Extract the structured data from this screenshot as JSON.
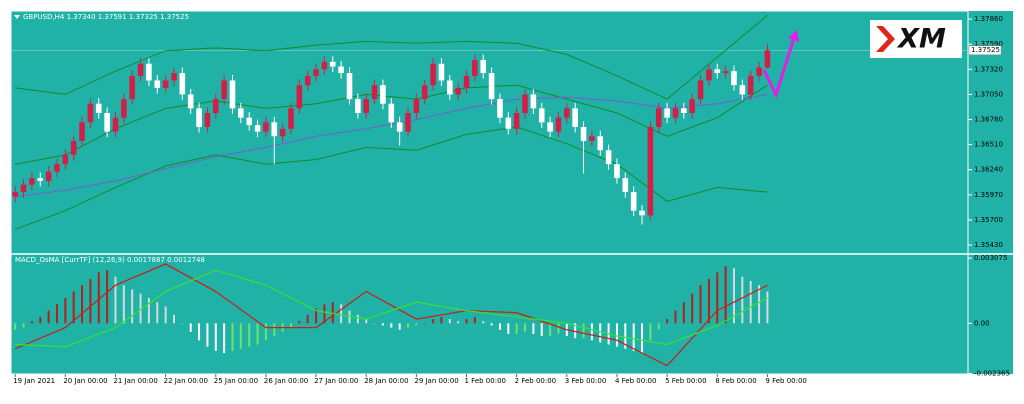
{
  "logo": "XM",
  "chart_data": [
    {
      "type": "candlestick",
      "title": "GBPUSD,H4  1.37340 1.37591 1.37325 1.37525",
      "xlim": [
        -0.5,
        114
      ],
      "ylim": [
        1.35334,
        1.37947
      ],
      "yticks": [
        {
          "value": 1.3786,
          "label": "1.37860"
        },
        {
          "value": 1.3759,
          "label": "1.37590"
        },
        {
          "value": 1.3732,
          "label": "1.37320"
        },
        {
          "value": 1.3705,
          "label": "1.37050"
        },
        {
          "value": 1.3678,
          "label": "1.36780"
        },
        {
          "value": 1.3651,
          "label": "1.36510"
        },
        {
          "value": 1.3624,
          "label": "1.36240"
        },
        {
          "value": 1.3597,
          "label": "1.35970"
        },
        {
          "value": 1.357,
          "label": "1.35700"
        },
        {
          "value": 1.3543,
          "label": "1.35430"
        }
      ],
      "last_price": {
        "value": 1.37525,
        "label": "1.37525"
      },
      "bull_color": "#d21f48",
      "bear_color": "#ffffff",
      "wick_color": "#ffffff",
      "open": [
        1.3595,
        1.36,
        1.3608,
        1.3615,
        1.3612,
        1.3622,
        1.363,
        1.364,
        1.3655,
        1.3675,
        1.3695,
        1.3685,
        1.3665,
        1.368,
        1.37,
        1.3725,
        1.3738,
        1.372,
        1.3712,
        1.372,
        1.3728,
        1.3705,
        1.369,
        1.367,
        1.3685,
        1.37,
        1.372,
        1.369,
        1.368,
        1.3672,
        1.3665,
        1.3675,
        1.366,
        1.3668,
        1.369,
        1.3715,
        1.3725,
        1.3732,
        1.374,
        1.3735,
        1.3728,
        1.37,
        1.3685,
        1.37,
        1.3715,
        1.3695,
        1.3675,
        1.3665,
        1.3685,
        1.37,
        1.3715,
        1.3738,
        1.372,
        1.3705,
        1.3712,
        1.3725,
        1.3742,
        1.3728,
        1.37,
        1.368,
        1.3668,
        1.3685,
        1.3705,
        1.369,
        1.3675,
        1.3665,
        1.368,
        1.369,
        1.367,
        1.3655,
        1.366,
        1.3645,
        1.363,
        1.3615,
        1.36,
        1.358,
        1.3575,
        1.367,
        1.369,
        1.368,
        1.369,
        1.3685,
        1.37,
        1.372,
        1.3732,
        1.3728,
        1.373,
        1.3715,
        1.3705,
        1.3725,
        1.3734
      ],
      "high": [
        1.3606,
        1.3614,
        1.3621,
        1.3621,
        1.3628,
        1.3636,
        1.3646,
        1.3661,
        1.3681,
        1.3701,
        1.3701,
        1.3691,
        1.3686,
        1.3706,
        1.3731,
        1.3744,
        1.3744,
        1.3726,
        1.3726,
        1.3734,
        1.3734,
        1.3711,
        1.3696,
        1.3691,
        1.3706,
        1.3726,
        1.3726,
        1.3696,
        1.3686,
        1.3678,
        1.3681,
        1.3681,
        1.3674,
        1.3696,
        1.3721,
        1.3731,
        1.3738,
        1.3746,
        1.3746,
        1.3741,
        1.3734,
        1.3706,
        1.3706,
        1.3721,
        1.3721,
        1.3701,
        1.3681,
        1.3691,
        1.3706,
        1.3721,
        1.3744,
        1.3744,
        1.3726,
        1.3718,
        1.3731,
        1.3748,
        1.3748,
        1.3734,
        1.3706,
        1.3686,
        1.3691,
        1.3711,
        1.3711,
        1.3696,
        1.3681,
        1.3686,
        1.3696,
        1.3696,
        1.3676,
        1.3666,
        1.3666,
        1.3651,
        1.3636,
        1.3621,
        1.3606,
        1.3586,
        1.3676,
        1.3696,
        1.3696,
        1.3696,
        1.3696,
        1.3706,
        1.3726,
        1.3738,
        1.3738,
        1.3736,
        1.3736,
        1.3721,
        1.3731,
        1.374,
        1.37591
      ],
      "low": [
        1.3589,
        1.3594,
        1.3602,
        1.3606,
        1.3606,
        1.3616,
        1.3624,
        1.3634,
        1.3649,
        1.3669,
        1.3679,
        1.3659,
        1.3659,
        1.3674,
        1.3694,
        1.3719,
        1.3714,
        1.3706,
        1.3706,
        1.3714,
        1.3699,
        1.3684,
        1.3664,
        1.3664,
        1.3679,
        1.3694,
        1.3684,
        1.3674,
        1.3666,
        1.3659,
        1.3659,
        1.363,
        1.3654,
        1.3662,
        1.3684,
        1.3709,
        1.3719,
        1.3726,
        1.3729,
        1.3722,
        1.3694,
        1.3679,
        1.3679,
        1.3694,
        1.3689,
        1.3669,
        1.365,
        1.3659,
        1.3679,
        1.3694,
        1.3709,
        1.3714,
        1.3699,
        1.3699,
        1.3706,
        1.3719,
        1.3722,
        1.3694,
        1.3674,
        1.3662,
        1.3662,
        1.3679,
        1.3684,
        1.3669,
        1.3659,
        1.3659,
        1.3674,
        1.3664,
        1.362,
        1.3649,
        1.3639,
        1.3624,
        1.3609,
        1.3594,
        1.3574,
        1.3565,
        1.3569,
        1.3664,
        1.3674,
        1.3674,
        1.3679,
        1.3679,
        1.3694,
        1.3714,
        1.3722,
        1.3722,
        1.3709,
        1.3699,
        1.3699,
        1.3719,
        1.37325
      ],
      "close": [
        1.36,
        1.3608,
        1.3615,
        1.3612,
        1.3622,
        1.363,
        1.364,
        1.3655,
        1.3675,
        1.3695,
        1.3685,
        1.3665,
        1.368,
        1.37,
        1.3725,
        1.3738,
        1.372,
        1.3712,
        1.372,
        1.3728,
        1.3705,
        1.369,
        1.367,
        1.3685,
        1.37,
        1.372,
        1.369,
        1.368,
        1.3672,
        1.3665,
        1.3675,
        1.366,
        1.3668,
        1.369,
        1.3715,
        1.3725,
        1.3732,
        1.374,
        1.3735,
        1.3728,
        1.37,
        1.3685,
        1.37,
        1.3715,
        1.3695,
        1.3675,
        1.3665,
        1.3685,
        1.37,
        1.3715,
        1.3738,
        1.372,
        1.3705,
        1.3712,
        1.3725,
        1.3742,
        1.3728,
        1.37,
        1.368,
        1.3668,
        1.3685,
        1.3705,
        1.369,
        1.3675,
        1.3665,
        1.368,
        1.369,
        1.367,
        1.3655,
        1.366,
        1.3645,
        1.363,
        1.3615,
        1.36,
        1.358,
        1.3575,
        1.367,
        1.369,
        1.368,
        1.369,
        1.3685,
        1.37,
        1.372,
        1.3732,
        1.3728,
        1.373,
        1.3715,
        1.3705,
        1.3725,
        1.3734,
        1.37525
      ],
      "lines": {
        "x": [
          0,
          6,
          12,
          18,
          24,
          30,
          36,
          42,
          48,
          54,
          60,
          66,
          72,
          78,
          84,
          90
        ],
        "series": [
          {
            "color": "#148a2a",
            "values": [
              1.3712,
              1.3705,
              1.373,
              1.3752,
              1.3755,
              1.3752,
              1.3758,
              1.3762,
              1.376,
              1.3762,
              1.376,
              1.3748,
              1.3725,
              1.37,
              1.3745,
              1.379
            ]
          },
          {
            "color": "#148a2a",
            "values": [
              1.363,
              1.364,
              1.3668,
              1.369,
              1.3698,
              1.369,
              1.3695,
              1.3705,
              1.37,
              1.3712,
              1.3715,
              1.37,
              1.3685,
              1.366,
              1.368,
              1.3715
            ]
          },
          {
            "color": "#148a2a",
            "values": [
              1.356,
              1.358,
              1.3605,
              1.3628,
              1.364,
              1.363,
              1.3635,
              1.3648,
              1.3645,
              1.3662,
              1.367,
              1.3652,
              1.363,
              1.359,
              1.3605,
              1.36
            ]
          },
          {
            "color": "#7a5ad0",
            "values": [
              1.3595,
              1.3602,
              1.3612,
              1.3625,
              1.3638,
              1.3648,
              1.366,
              1.3668,
              1.3678,
              1.369,
              1.37,
              1.3702,
              1.3698,
              1.369,
              1.3695,
              1.3705
            ]
          }
        ]
      }
    },
    {
      "type": "macd",
      "title": "MACD_OsMA [CurrTF] (12,26,9) 0.0017887 0.0012748",
      "xlim": [
        -0.5,
        114
      ],
      "ylim": [
        -0.00239,
        0.00327
      ],
      "yticks": [
        0.003075,
        {
          "value": 0,
          "label": "0.00"
        },
        -0.002365
      ],
      "xticks": [
        {
          "value": 0,
          "label": "19 Jan 2021"
        },
        {
          "value": 6,
          "label": "20 Jan 00:00"
        },
        {
          "value": 12,
          "label": "21 Jan 00:00"
        },
        {
          "value": 18,
          "label": "22 Jan 00:00"
        },
        {
          "value": 24,
          "label": "25 Jan 00:00"
        },
        {
          "value": 30,
          "label": "26 Jan 00:00"
        },
        {
          "value": 36,
          "label": "27 Jan 00:00"
        },
        {
          "value": 42,
          "label": "28 Jan 00:00"
        },
        {
          "value": 48,
          "label": "29 Jan 00:00"
        },
        {
          "value": 54,
          "label": "1 Feb 00:00"
        },
        {
          "value": 60,
          "label": "2 Feb 00:00"
        },
        {
          "value": 66,
          "label": "3 Feb 00:00"
        },
        {
          "value": 72,
          "label": "4 Feb 00:00"
        },
        {
          "value": 78,
          "label": "5 Feb 00:00"
        },
        {
          "value": 84,
          "label": "8 Feb 00:00"
        },
        {
          "value": 90,
          "label": "9 Feb 00:00"
        }
      ],
      "histogram_colors": {
        "positive_rising": "#b3201e",
        "positive_falling": "#d9d9d9",
        "negative_falling": "#ffffff",
        "negative_rising": "#6ee26a"
      },
      "histogram": [
        -0.0003,
        -0.0002,
        0.0001,
        0.0003,
        0.0006,
        0.0009,
        0.0012,
        0.0015,
        0.0018,
        0.0021,
        0.0024,
        0.0025,
        0.0022,
        0.0018,
        0.0016,
        0.0014,
        0.0012,
        0.001,
        0.0008,
        0.0004,
        0,
        -0.0004,
        -0.0008,
        -0.0011,
        -0.0013,
        -0.0014,
        -0.0013,
        -0.0012,
        -0.0011,
        -0.001,
        -0.0008,
        -0.0006,
        -0.0004,
        -0.0002,
        0.0001,
        0.0004,
        0.0007,
        0.0009,
        0.001,
        0.0009,
        0.0006,
        0.0004,
        0.0002,
        0,
        -0.0001,
        -0.0002,
        -0.0003,
        -0.0002,
        -0.0001,
        0,
        0.0002,
        0.0003,
        0.0002,
        0.0001,
        0.0002,
        0.0003,
        0.0001,
        -0.0001,
        -0.0003,
        -0.0005,
        -0.0005,
        -0.0004,
        -0.0005,
        -0.0006,
        -0.0006,
        -0.0005,
        -0.0006,
        -0.0007,
        -0.0007,
        -0.0008,
        -0.0009,
        -0.001,
        -0.0011,
        -0.0012,
        -0.0013,
        -0.0014,
        -0.0008,
        -0.0003,
        0.0002,
        0.0006,
        0.001,
        0.0014,
        0.0018,
        0.0021,
        0.0024,
        0.0027,
        0.0026,
        0.0022,
        0.002,
        0.0018,
        0.0015
      ],
      "lines": {
        "x": [
          0,
          6,
          12,
          18,
          24,
          30,
          36,
          42,
          48,
          54,
          60,
          66,
          72,
          78,
          84,
          90
        ],
        "series": [
          {
            "color": "#c8201e",
            "values": [
              -0.0012,
              -0.0002,
              0.0018,
              0.0028,
              0.0015,
              -0.0002,
              -0.0002,
              0.0015,
              0.0002,
              0.0006,
              0.0005,
              -0.0003,
              -0.0008,
              -0.002,
              0.0006,
              0.0018
            ]
          },
          {
            "color": "#34e03a",
            "values": [
              -0.001,
              -0.0011,
              -0.0002,
              0.0015,
              0.0025,
              0.0018,
              0.0006,
              0.0002,
              0.001,
              0.0006,
              0.0003,
              0,
              -0.0006,
              -0.001,
              -0.0001,
              0.0012
            ]
          }
        ]
      }
    }
  ]
}
